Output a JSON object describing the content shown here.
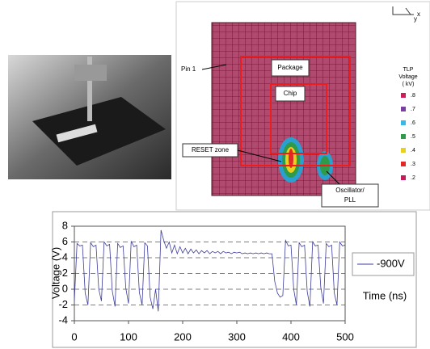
{
  "heatmap": {
    "axis_x": "x",
    "axis_y": "y",
    "pin_label": "Pin 1",
    "package_label": "Package",
    "chip_label": "Chip",
    "reset_label": "RESET zone",
    "oscillator_label": [
      "Oscillator/",
      "PLL"
    ],
    "legend_title": [
      "TLP",
      "Voltage",
      "( kV)"
    ],
    "legend": [
      {
        "label": ".8",
        "color": "#c81e5a"
      },
      {
        "label": ".7",
        "color": "#7a3ea0"
      },
      {
        "label": ".6",
        "color": "#38b8e8"
      },
      {
        "label": ".5",
        "color": "#2e9a4a"
      },
      {
        "label": ".4",
        "color": "#e8d020"
      },
      {
        "label": ".3",
        "color": "#e02828"
      },
      {
        "label": ".2",
        "color": "#c01e5a"
      }
    ]
  },
  "chart_data": {
    "type": "line",
    "xlabel": "Time (ns)",
    "ylabel": "Voltage (V)",
    "x": [
      0,
      5,
      10,
      15,
      20,
      25,
      30,
      35,
      40,
      45,
      50,
      55,
      60,
      65,
      70,
      75,
      80,
      85,
      90,
      95,
      100,
      105,
      110,
      115,
      120,
      125,
      130,
      135,
      140,
      145,
      150,
      155,
      160,
      165,
      170,
      175,
      180,
      185,
      190,
      195,
      200,
      205,
      210,
      215,
      220,
      225,
      230,
      235,
      240,
      245,
      250,
      255,
      260,
      265,
      270,
      275,
      280,
      285,
      290,
      295,
      300,
      305,
      310,
      315,
      320,
      325,
      330,
      335,
      340,
      345,
      350,
      355,
      360,
      365,
      370,
      375,
      380,
      385,
      390,
      395,
      400,
      405,
      410,
      415,
      420,
      425,
      430,
      435,
      440,
      445,
      450,
      455,
      460,
      465,
      470,
      475,
      480,
      485,
      490,
      495,
      500
    ],
    "series": [
      {
        "name": "-900V",
        "color": "#3c3c9c",
        "values": [
          -1.5,
          5.8,
          5.5,
          5.6,
          -0.5,
          -2,
          5.9,
          5.4,
          5.6,
          0,
          -1.5,
          6,
          5.5,
          5.7,
          -0.2,
          -2.2,
          5.8,
          5.3,
          5.5,
          0.1,
          -1.8,
          6.1,
          5.4,
          5.6,
          -0.4,
          -2,
          5.9,
          5.5,
          -1,
          -2.5,
          0,
          -2.8,
          7.5,
          6.2,
          5.2,
          6,
          4.6,
          5.6,
          4.5,
          5.4,
          4.6,
          5.2,
          4.5,
          5.1,
          4.6,
          5,
          4.5,
          4.9,
          4.6,
          4.9,
          4.5,
          4.8,
          4.6,
          4.8,
          4.5,
          4.8,
          4.6,
          4.7,
          4.5,
          4.7,
          4.6,
          4.7,
          4.5,
          4.6,
          4.5,
          4.6,
          4.5,
          4.6,
          4.5,
          4.6,
          4.5,
          4.6,
          4.5,
          4.5,
          1,
          -0.5,
          -1,
          -0.8,
          6.2,
          5.5,
          5.6,
          0,
          -2,
          5.9,
          5.4,
          5.6,
          -0.3,
          -2.2,
          6,
          5.5,
          5.6,
          0.2,
          -1.8,
          5.8,
          5.4,
          5.6,
          -0.5,
          -2,
          6,
          5.5,
          5.6
        ]
      }
    ],
    "xlim": [
      0,
      500
    ],
    "ylim": [
      -4,
      8
    ],
    "xticks": [
      0,
      100,
      200,
      300,
      400,
      500
    ],
    "yticks": [
      -4,
      -2,
      0,
      2,
      4,
      6,
      8
    ],
    "grid": true
  }
}
